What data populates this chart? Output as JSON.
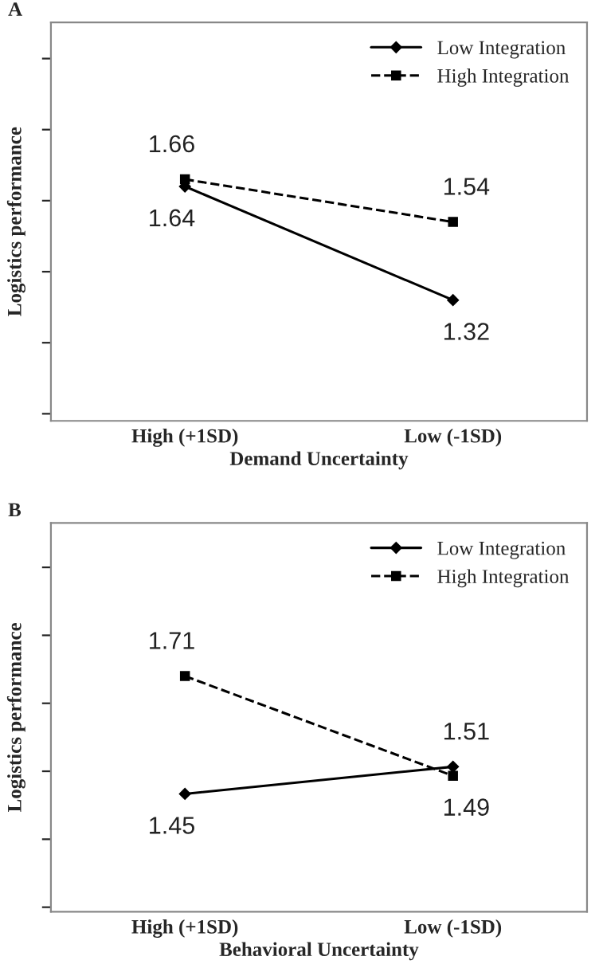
{
  "chart_data": [
    {
      "type": "line",
      "title": "A",
      "xlabel": "Demand Uncertainty",
      "ylabel": "Logistics performance",
      "categories": [
        "High (+1SD)",
        "Low (-1SD)"
      ],
      "series": [
        {
          "name": "Low Integration",
          "color": "#000000",
          "values": [
            1.64,
            1.32
          ],
          "marker": "diamond",
          "line_style": "solid"
        },
        {
          "name": "High Integration",
          "color": "#000000",
          "values": [
            1.66,
            1.54
          ],
          "marker": "square",
          "line_style": "dashed"
        }
      ],
      "data_labels": true,
      "legend": "top right",
      "grid": false
    },
    {
      "type": "line",
      "title": "B",
      "xlabel": "Behavioral Uncertainty",
      "ylabel": "Logistics performance",
      "categories": [
        "High (+1SD)",
        "Low (-1SD)"
      ],
      "series": [
        {
          "name": "Low Integration",
          "color": "#000000",
          "values": [
            1.45,
            1.51
          ],
          "marker": "diamond",
          "line_style": "solid"
        },
        {
          "name": "High Integration",
          "color": "#000000",
          "values": [
            1.71,
            1.49
          ],
          "marker": "square",
          "line_style": "dashed"
        }
      ],
      "data_labels": true,
      "legend": "top right",
      "grid": false
    }
  ]
}
